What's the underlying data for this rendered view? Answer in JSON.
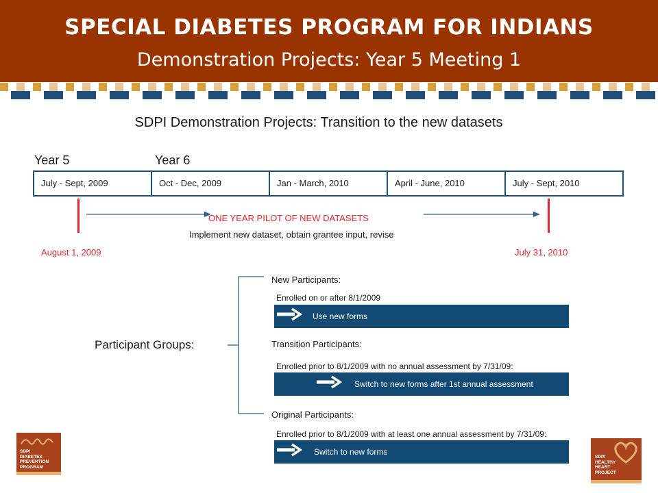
{
  "header": {
    "title": "SPECIAL DIABETES PROGRAM FOR INDIANS",
    "subtitle": "Demonstration Projects:  Year 5 Meeting 1",
    "background_color": "#993300",
    "stripe_colors": [
      "#1f4e79",
      "#d4a23a",
      "#e8c49a"
    ]
  },
  "slide": {
    "title": "SDPI Demonstration Projects:  Transition to the new datasets"
  },
  "timeline": {
    "year_labels": [
      "Year 5",
      "Year 6"
    ],
    "periods": [
      "July - Sept, 2009",
      "Oct - Dec, 2009",
      "Jan - March, 2010",
      "April - June, 2010",
      "July - Sept, 2010"
    ],
    "pilot_label": "ONE YEAR PILOT OF NEW DATASETS",
    "pilot_description": "Implement new dataset, obtain grantee input, revise",
    "start_date": "August 1, 2009",
    "end_date": "July 31, 2010",
    "accent_color": "#e0282d"
  },
  "participants": {
    "label": "Participant Groups:",
    "groups": [
      {
        "name": "New Participants:",
        "criteria": "Enrolled on or after 8/1/2009",
        "action": "Use new forms"
      },
      {
        "name": "Transition Participants:",
        "criteria": "Enrolled prior to 8/1/2009 with no annual assessment by 7/31/09:",
        "action": "Switch to new forms after 1st annual assessment"
      },
      {
        "name": "Original Participants:",
        "criteria": "Enrolled prior to 8/1/2009 with at least one annual assessment by 7/31/09:",
        "action": "Switch to new forms"
      }
    ],
    "bar_color": "#124a73"
  },
  "logos": {
    "left": {
      "icon": "sdpi-diabetes-prevention-logo",
      "text": "SDPI\nDIABETES\nPREVENTION\nPROGRAM"
    },
    "right": {
      "icon": "sdpi-healthy-heart-logo",
      "text": "SDPI\nHEALTHY\nHEART\nPROJECT"
    }
  }
}
